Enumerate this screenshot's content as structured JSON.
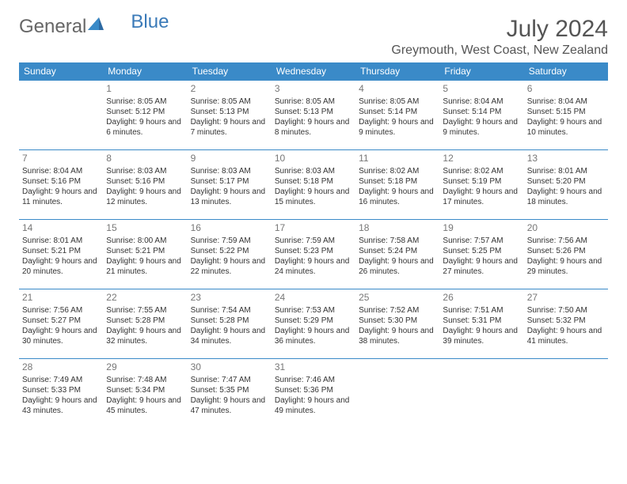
{
  "logo": {
    "part1": "General",
    "part2": "Blue"
  },
  "title": "July 2024",
  "location": "Greymouth, West Coast, New Zealand",
  "colors": {
    "header_bg": "#3a8ac8",
    "header_text": "#ffffff",
    "row_border": "#3a8ac8",
    "text": "#333333",
    "daynum": "#777777",
    "logo_gray": "#666666",
    "logo_blue": "#3a7ab8"
  },
  "weekdays": [
    "Sunday",
    "Monday",
    "Tuesday",
    "Wednesday",
    "Thursday",
    "Friday",
    "Saturday"
  ],
  "weeks": [
    [
      null,
      {
        "n": "1",
        "sr": "8:05 AM",
        "ss": "5:12 PM",
        "dl": "9 hours and 6 minutes."
      },
      {
        "n": "2",
        "sr": "8:05 AM",
        "ss": "5:13 PM",
        "dl": "9 hours and 7 minutes."
      },
      {
        "n": "3",
        "sr": "8:05 AM",
        "ss": "5:13 PM",
        "dl": "9 hours and 8 minutes."
      },
      {
        "n": "4",
        "sr": "8:05 AM",
        "ss": "5:14 PM",
        "dl": "9 hours and 9 minutes."
      },
      {
        "n": "5",
        "sr": "8:04 AM",
        "ss": "5:14 PM",
        "dl": "9 hours and 9 minutes."
      },
      {
        "n": "6",
        "sr": "8:04 AM",
        "ss": "5:15 PM",
        "dl": "9 hours and 10 minutes."
      }
    ],
    [
      {
        "n": "7",
        "sr": "8:04 AM",
        "ss": "5:16 PM",
        "dl": "9 hours and 11 minutes."
      },
      {
        "n": "8",
        "sr": "8:03 AM",
        "ss": "5:16 PM",
        "dl": "9 hours and 12 minutes."
      },
      {
        "n": "9",
        "sr": "8:03 AM",
        "ss": "5:17 PM",
        "dl": "9 hours and 13 minutes."
      },
      {
        "n": "10",
        "sr": "8:03 AM",
        "ss": "5:18 PM",
        "dl": "9 hours and 15 minutes."
      },
      {
        "n": "11",
        "sr": "8:02 AM",
        "ss": "5:18 PM",
        "dl": "9 hours and 16 minutes."
      },
      {
        "n": "12",
        "sr": "8:02 AM",
        "ss": "5:19 PM",
        "dl": "9 hours and 17 minutes."
      },
      {
        "n": "13",
        "sr": "8:01 AM",
        "ss": "5:20 PM",
        "dl": "9 hours and 18 minutes."
      }
    ],
    [
      {
        "n": "14",
        "sr": "8:01 AM",
        "ss": "5:21 PM",
        "dl": "9 hours and 20 minutes."
      },
      {
        "n": "15",
        "sr": "8:00 AM",
        "ss": "5:21 PM",
        "dl": "9 hours and 21 minutes."
      },
      {
        "n": "16",
        "sr": "7:59 AM",
        "ss": "5:22 PM",
        "dl": "9 hours and 22 minutes."
      },
      {
        "n": "17",
        "sr": "7:59 AM",
        "ss": "5:23 PM",
        "dl": "9 hours and 24 minutes."
      },
      {
        "n": "18",
        "sr": "7:58 AM",
        "ss": "5:24 PM",
        "dl": "9 hours and 26 minutes."
      },
      {
        "n": "19",
        "sr": "7:57 AM",
        "ss": "5:25 PM",
        "dl": "9 hours and 27 minutes."
      },
      {
        "n": "20",
        "sr": "7:56 AM",
        "ss": "5:26 PM",
        "dl": "9 hours and 29 minutes."
      }
    ],
    [
      {
        "n": "21",
        "sr": "7:56 AM",
        "ss": "5:27 PM",
        "dl": "9 hours and 30 minutes."
      },
      {
        "n": "22",
        "sr": "7:55 AM",
        "ss": "5:28 PM",
        "dl": "9 hours and 32 minutes."
      },
      {
        "n": "23",
        "sr": "7:54 AM",
        "ss": "5:28 PM",
        "dl": "9 hours and 34 minutes."
      },
      {
        "n": "24",
        "sr": "7:53 AM",
        "ss": "5:29 PM",
        "dl": "9 hours and 36 minutes."
      },
      {
        "n": "25",
        "sr": "7:52 AM",
        "ss": "5:30 PM",
        "dl": "9 hours and 38 minutes."
      },
      {
        "n": "26",
        "sr": "7:51 AM",
        "ss": "5:31 PM",
        "dl": "9 hours and 39 minutes."
      },
      {
        "n": "27",
        "sr": "7:50 AM",
        "ss": "5:32 PM",
        "dl": "9 hours and 41 minutes."
      }
    ],
    [
      {
        "n": "28",
        "sr": "7:49 AM",
        "ss": "5:33 PM",
        "dl": "9 hours and 43 minutes."
      },
      {
        "n": "29",
        "sr": "7:48 AM",
        "ss": "5:34 PM",
        "dl": "9 hours and 45 minutes."
      },
      {
        "n": "30",
        "sr": "7:47 AM",
        "ss": "5:35 PM",
        "dl": "9 hours and 47 minutes."
      },
      {
        "n": "31",
        "sr": "7:46 AM",
        "ss": "5:36 PM",
        "dl": "9 hours and 49 minutes."
      },
      null,
      null,
      null
    ]
  ],
  "labels": {
    "sunrise": "Sunrise: ",
    "sunset": "Sunset: ",
    "daylight": "Daylight: "
  }
}
